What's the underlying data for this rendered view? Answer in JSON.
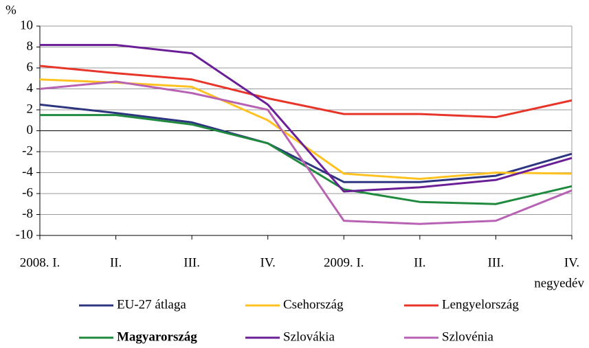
{
  "chart_data": {
    "type": "line",
    "y_label": "%",
    "x_label": "negyedév",
    "categories": [
      "2008. I.",
      "II.",
      "III.",
      "IV.",
      "2009. I.",
      "II.",
      "III.",
      "IV."
    ],
    "series": [
      {
        "name": "EU-27 átlaga",
        "color": "#2e3580",
        "values": [
          2.5,
          1.7,
          0.8,
          -1.2,
          -4.9,
          -4.9,
          -4.3,
          -2.2
        ]
      },
      {
        "name": "Csehország",
        "color": "#ffc220",
        "values": [
          4.9,
          4.6,
          4.2,
          1.0,
          -4.1,
          -4.6,
          -4.0,
          -4.1
        ]
      },
      {
        "name": "Lengyelország",
        "color": "#e8352a",
        "values": [
          6.2,
          5.5,
          4.9,
          3.1,
          1.6,
          1.6,
          1.3,
          2.9
        ]
      },
      {
        "name": "Magyarország",
        "color": "#1f8a3e",
        "values": [
          1.5,
          1.5,
          0.6,
          -1.2,
          -5.6,
          -6.8,
          -7.0,
          -5.3
        ]
      },
      {
        "name": "Szlovákia",
        "color": "#6b1f96",
        "values": [
          8.2,
          8.2,
          7.4,
          2.5,
          -5.8,
          -5.4,
          -4.7,
          -2.6
        ]
      },
      {
        "name": "Szlovénia",
        "color": "#b862b4",
        "values": [
          4.0,
          4.7,
          3.6,
          2.0,
          -8.6,
          -8.9,
          -8.6,
          -5.7
        ]
      }
    ],
    "ylim": [
      -10,
      10
    ],
    "yticks": [
      -10,
      -8,
      -6,
      -4,
      -2,
      0,
      2,
      4,
      6,
      8,
      10
    ],
    "grid": true
  }
}
